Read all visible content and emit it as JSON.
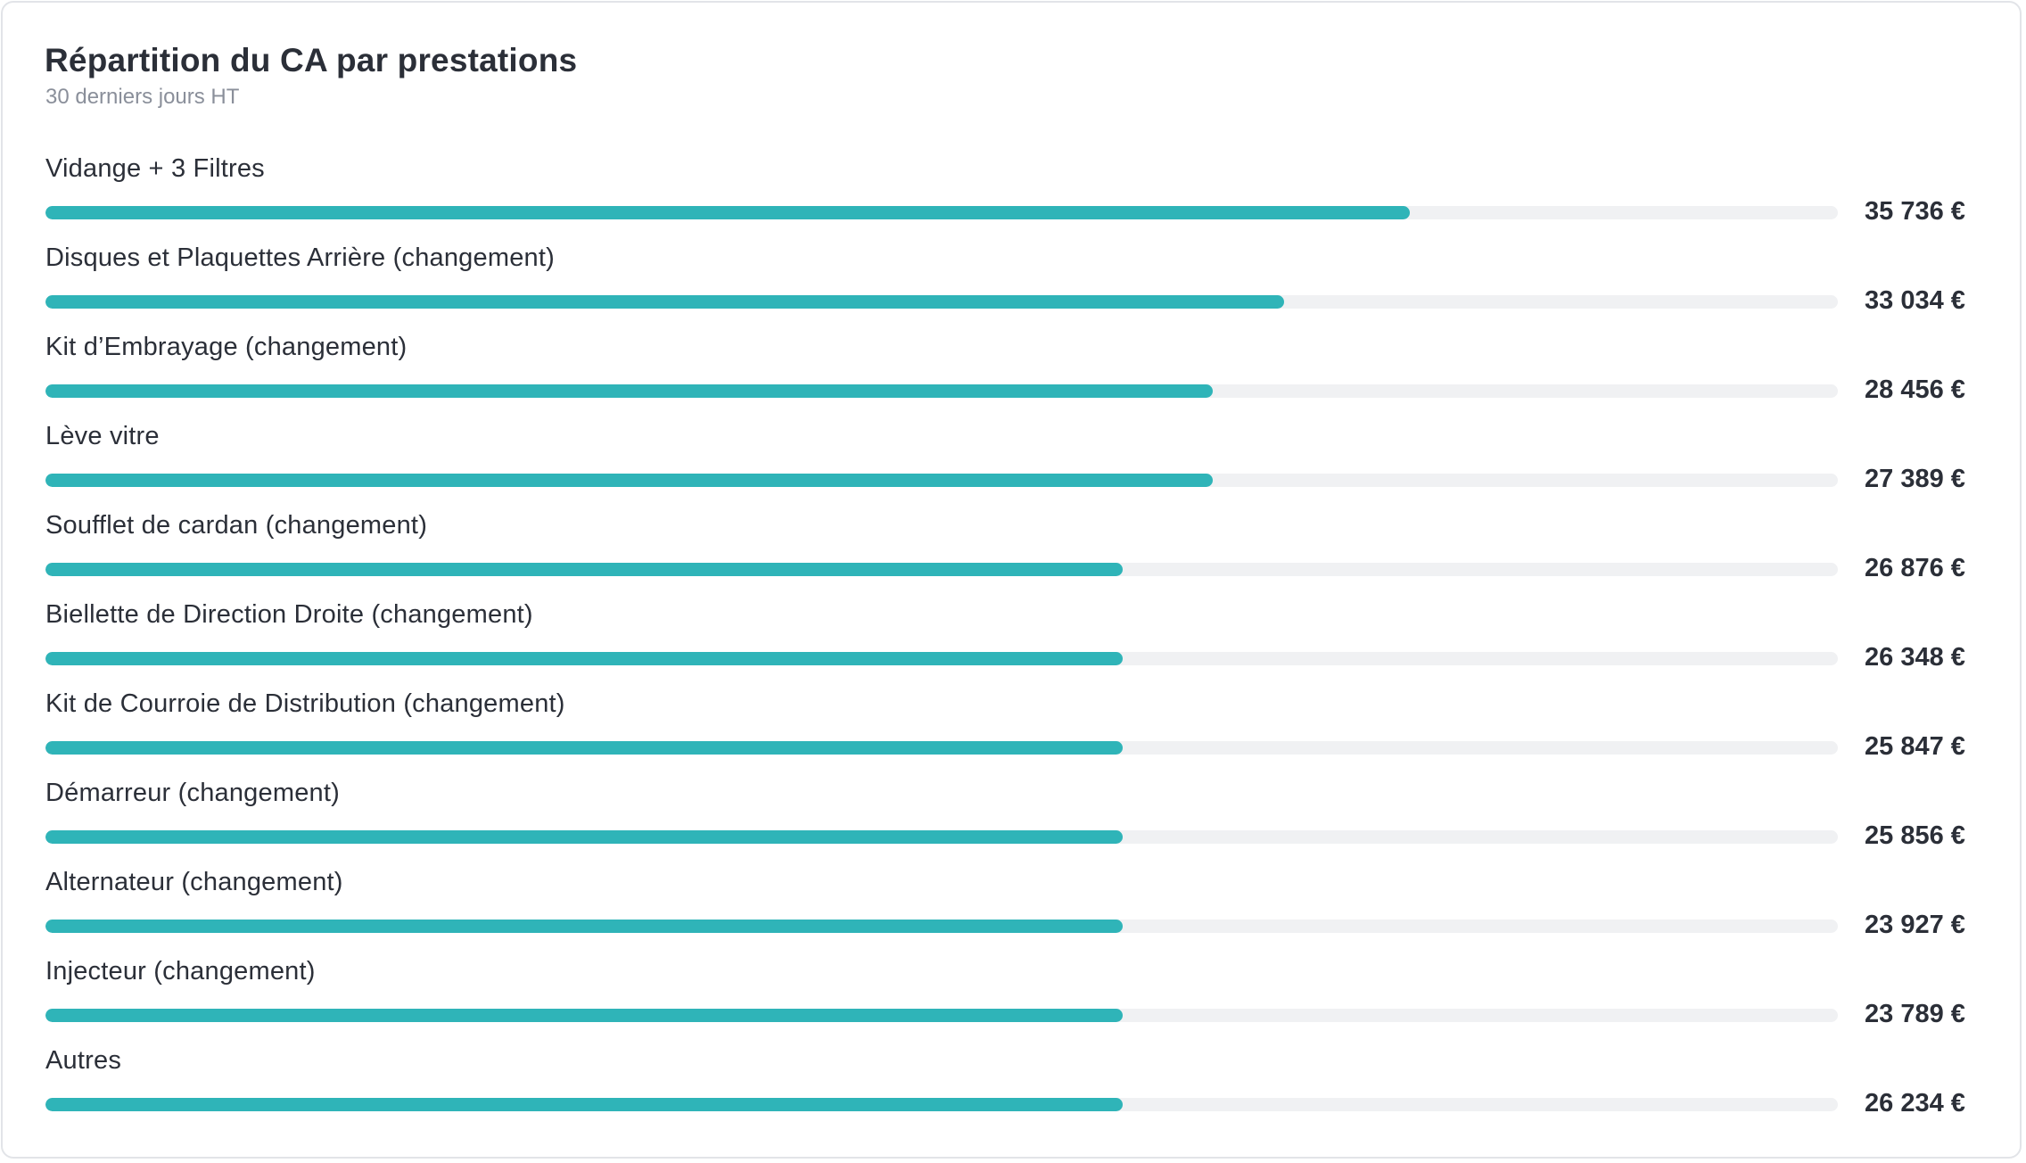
{
  "header": {
    "title": "Répartition du CA par prestations",
    "subtitle": "30 derniers jours HT"
  },
  "colors": {
    "bar_fill": "#2fb4b8",
    "bar_track": "#f0f1f3",
    "text": "#2b2f38",
    "subtitle": "#8a8f9a"
  },
  "chart_data": {
    "type": "bar",
    "orientation": "horizontal",
    "title": "Répartition du CA par prestations",
    "subtitle": "30 derniers jours HT",
    "bar_scale_max": 46600,
    "categories": [
      "Vidange + 3 Filtres",
      "Disques et Plaquettes Arrière (changement)",
      "Kit d’Embrayage (changement)",
      "Lève vitre",
      "Soufflet de cardan (changement)",
      "Biellette de Direction Droite (changement)",
      "Kit de Courroie de Distribution (changement)",
      "Démarreur (changement)",
      "Alternateur (changement)",
      "Injecteur (changement)",
      "Autres"
    ],
    "values": [
      35736,
      33034,
      28456,
      27389,
      26876,
      26348,
      25847,
      25856,
      23927,
      23789,
      26234
    ],
    "bar_fill_fraction": [
      0.761,
      0.691,
      0.651,
      0.651,
      0.601,
      0.601,
      0.601,
      0.601,
      0.601,
      0.601,
      0.601
    ],
    "value_labels": [
      "35 736 €",
      "33 034 €",
      "28 456 €",
      "27 389 €",
      "26 876 €",
      "26 348 €",
      "25 847 €",
      "25 856 €",
      "23 927 €",
      "23 789 €",
      "26 234 €"
    ]
  }
}
